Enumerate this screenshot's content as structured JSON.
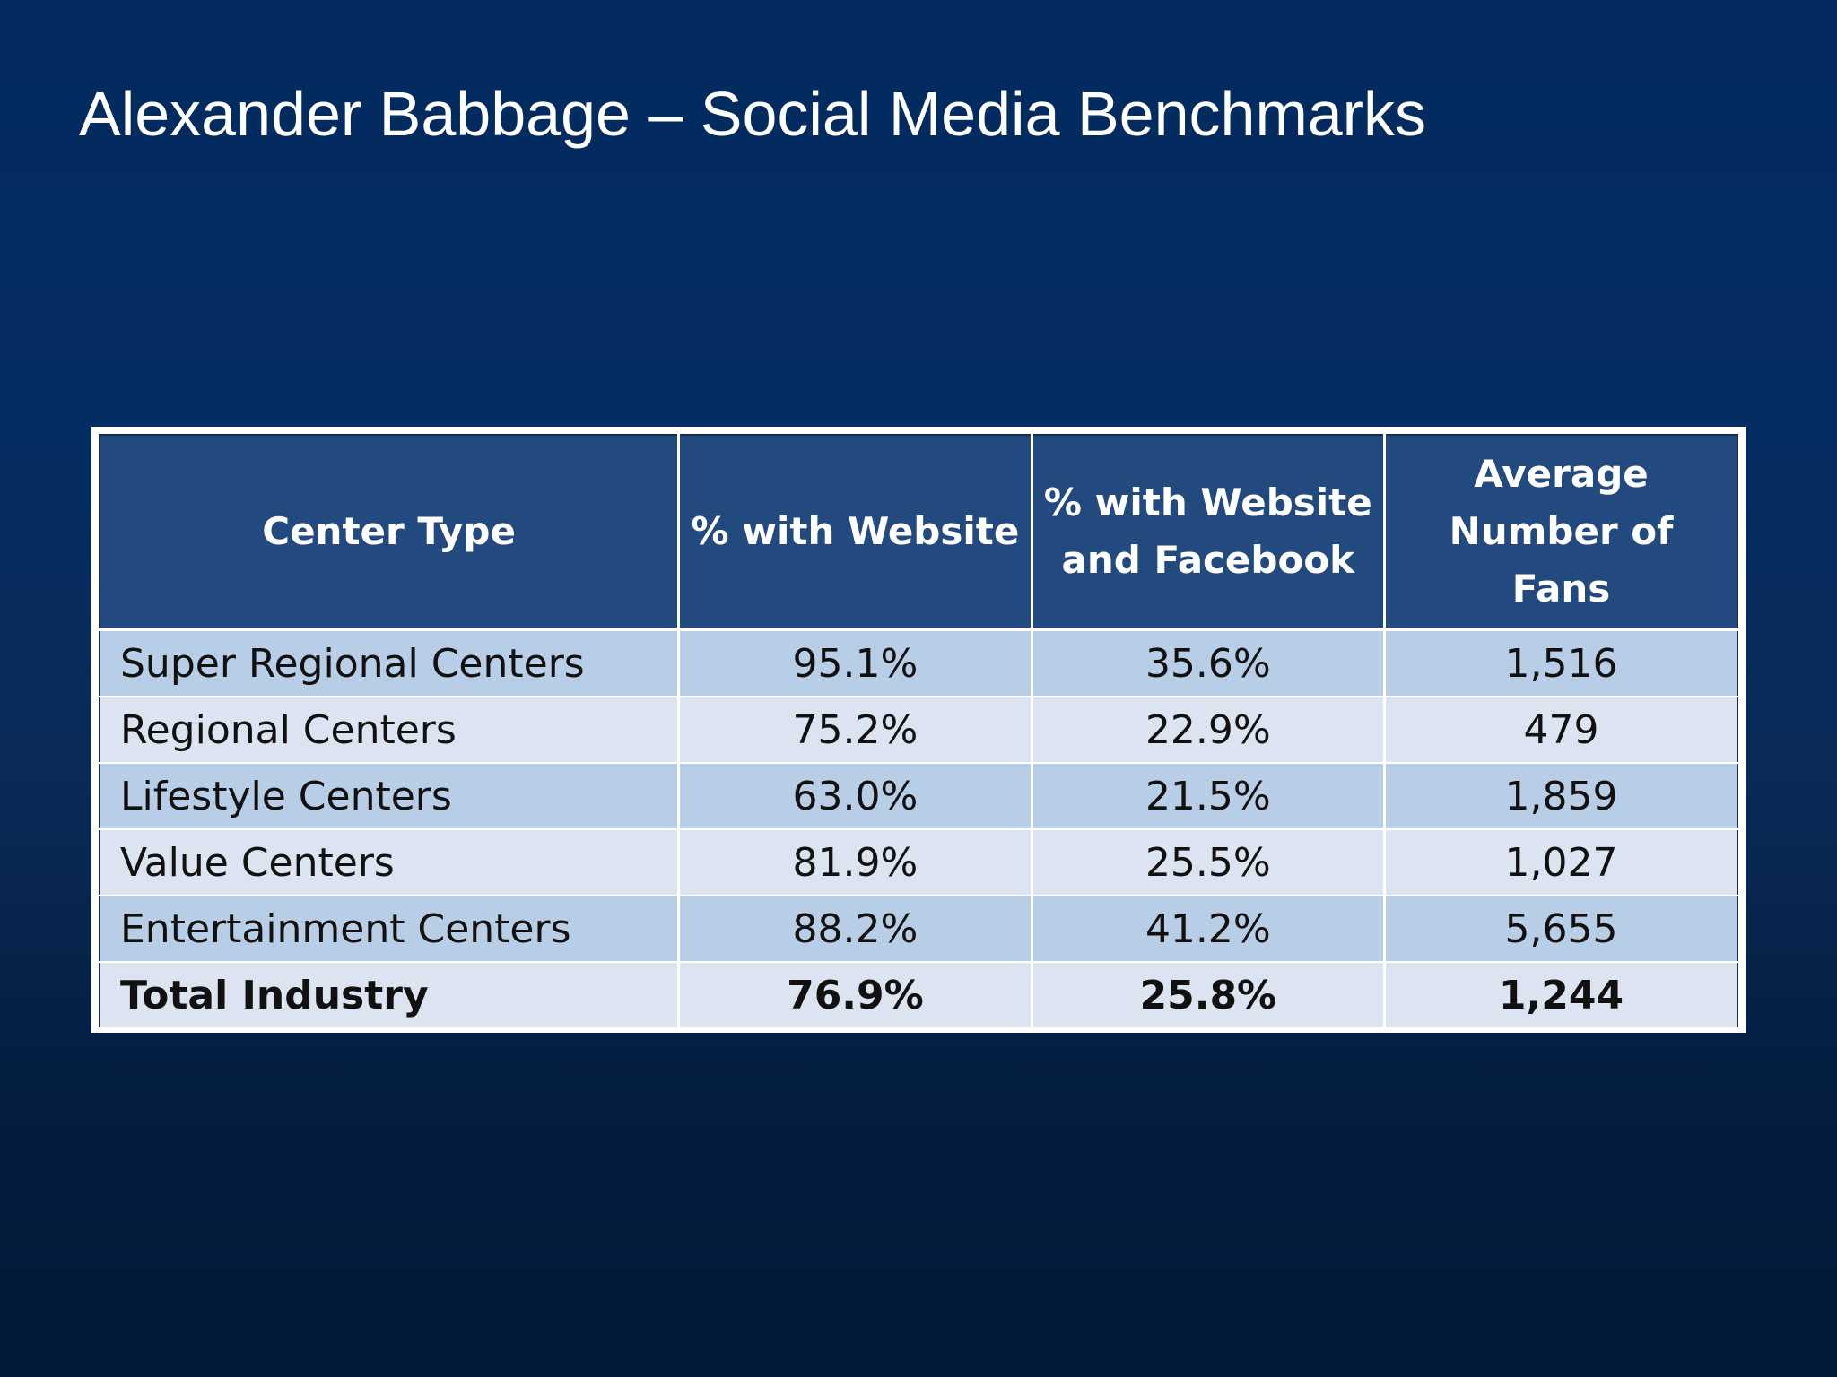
{
  "slide": {
    "title": "Alexander Babbage – Social Media Benchmarks"
  },
  "table": {
    "headers": [
      "Center Type",
      "% with Website",
      "% with Website and Facebook",
      "Average Number of Fans"
    ],
    "rows": [
      [
        "Super Regional Centers",
        "95.1%",
        "35.6%",
        "1,516"
      ],
      [
        "Regional Centers",
        "75.2%",
        "22.9%",
        "479"
      ],
      [
        "Lifestyle Centers",
        "63.0%",
        "21.5%",
        "1,859"
      ],
      [
        "Value Centers",
        "81.9%",
        "25.5%",
        "1,027"
      ],
      [
        "Entertainment Centers",
        "88.2%",
        "41.2%",
        "5,655"
      ]
    ],
    "total": [
      "Total Industry",
      "76.9%",
      "25.8%",
      "1,244"
    ]
  },
  "colors": {
    "background": "#022a5e",
    "header_fill": "#234a7f",
    "row_fill_dark": "#b8cde6",
    "row_fill_light": "#dce4f1",
    "title_text": "#ffffff"
  }
}
